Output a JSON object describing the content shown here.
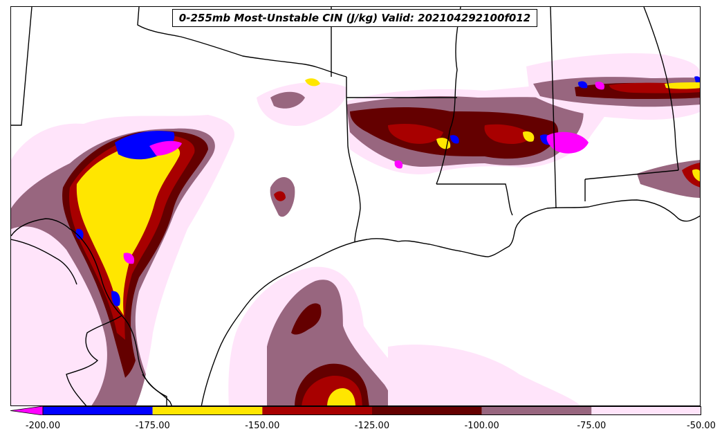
{
  "title": "0-255mb Most-Unstable CIN (J/kg) Valid: 202104292100f012",
  "colorbar": {
    "extend": "min",
    "bins": [
      {
        "from": -200,
        "to": -175,
        "color": "#0000ff"
      },
      {
        "from": -175,
        "to": -150,
        "color": "#ffe600"
      },
      {
        "from": -150,
        "to": -125,
        "color": "#a80000"
      },
      {
        "from": -125,
        "to": -100,
        "color": "#640000"
      },
      {
        "from": -100,
        "to": -75,
        "color": "#98667f"
      },
      {
        "from": -75,
        "to": -50,
        "color": "#ffe4fa"
      }
    ],
    "under_color": "#ff00ff",
    "tick_labels": [
      "-200.00",
      "-175.00",
      "-150.00",
      "-125.00",
      "-100.00",
      "-75.00",
      "-50.00"
    ]
  },
  "colors": {
    "faint": "#ffe4fa",
    "mauve": "#98667f",
    "darkred": "#640000",
    "red": "#a80000",
    "yellow": "#ffe600",
    "blue": "#0000ff",
    "magenta": "#ff00ff"
  }
}
